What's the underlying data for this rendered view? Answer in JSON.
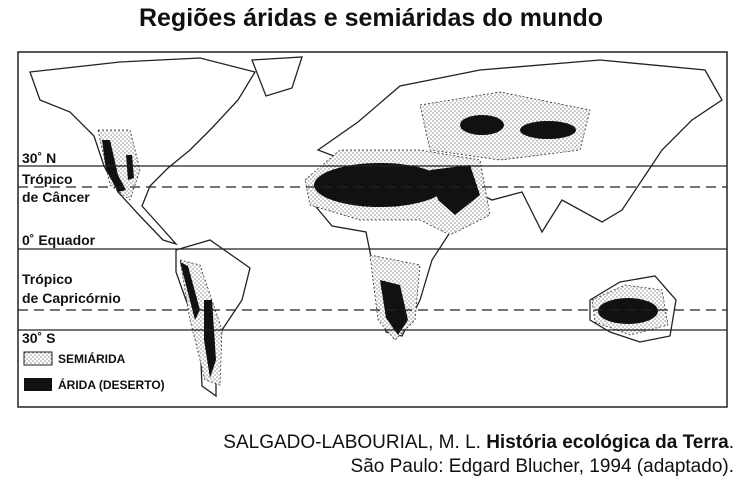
{
  "title": "Regiões áridas e semiáridas do mundo",
  "map": {
    "lines": [
      {
        "label": [
          "30˚ N"
        ]
      },
      {
        "label": [
          "Trópico",
          "de Câncer"
        ]
      },
      {
        "label": [
          "0˚ Equador"
        ]
      },
      {
        "label": [
          "Trópico",
          "de Capricórnio"
        ]
      },
      {
        "label": [
          "30˚ S"
        ]
      }
    ],
    "legend": [
      "SEMIÁRIDA",
      "ÁRIDA (DESERTO)"
    ]
  },
  "source": {
    "line1": [
      "SALGADO-LABOURIAL, M. L. ",
      "História ecológica da Terra",
      "."
    ],
    "line2": "São Paulo: Edgard Blucher, 1994 (adaptado)."
  }
}
